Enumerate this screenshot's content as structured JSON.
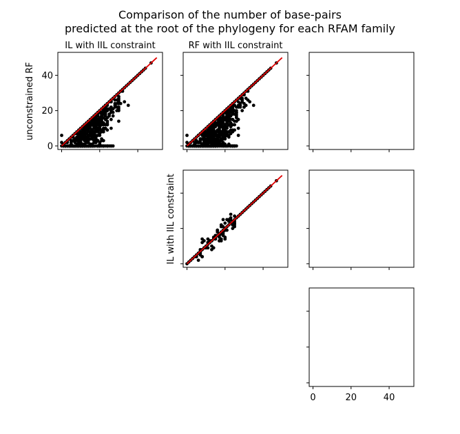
{
  "figure": {
    "title_line1": "Comparison of the number of base-pairs",
    "title_line2": "predicted at the root of the phylogeny for each RFAM family",
    "column_titles": [
      "IL with IIL constraint",
      "RF with IIL constraint"
    ],
    "row_labels": [
      "unconstrained RF",
      "IL with IIL constraint"
    ]
  },
  "chart_data": [
    {
      "type": "scatter",
      "panel": "row1-col1",
      "title": "IL with IIL constraint",
      "xlabel": "",
      "ylabel": "unconstrained RF",
      "xlim": [
        -2,
        53
      ],
      "ylim": [
        -2,
        53
      ],
      "yticks": [
        0,
        20,
        40
      ],
      "xticks": [
        0,
        20,
        40
      ],
      "reference_line": {
        "from": [
          0,
          0
        ],
        "to": [
          50,
          50
        ],
        "color": "#e00000"
      },
      "color": "#000000",
      "notes": "dense cloud of points on and below the diagonal, many points at y = 0"
    },
    {
      "type": "scatter",
      "panel": "row1-col2",
      "title": "RF with IIL constraint",
      "xlabel": "",
      "ylabel": "",
      "xlim": [
        -2,
        53
      ],
      "ylim": [
        -2,
        53
      ],
      "yticks": [
        0,
        20,
        40
      ],
      "xticks": [
        0,
        20,
        40
      ],
      "reference_line": {
        "from": [
          0,
          0
        ],
        "to": [
          50,
          50
        ],
        "color": "#e00000"
      },
      "color": "#000000"
    },
    {
      "type": "scatter",
      "panel": "row2-col2",
      "title": "",
      "xlabel": "",
      "ylabel": "IL with IIL constraint",
      "xlim": [
        -2,
        53
      ],
      "ylim": [
        -2,
        53
      ],
      "yticks": [
        0,
        20,
        40
      ],
      "xticks": [
        0,
        20,
        40
      ],
      "reference_line": {
        "from": [
          0,
          0
        ],
        "to": [
          50,
          50
        ],
        "color": "#e00000"
      },
      "color": "#000000"
    },
    {
      "type": "scatter",
      "panel": "row1-col3",
      "empty": true,
      "xlim": [
        -2,
        53
      ],
      "ylim": [
        -2,
        53
      ],
      "yticks": [
        0,
        20,
        40
      ],
      "xticks": [
        0,
        20,
        40
      ]
    },
    {
      "type": "scatter",
      "panel": "row2-col3",
      "empty": true,
      "xlim": [
        -2,
        53
      ],
      "ylim": [
        -2,
        53
      ],
      "yticks": [
        0,
        20,
        40
      ],
      "xticks": [
        0,
        20,
        40
      ]
    },
    {
      "type": "scatter",
      "panel": "row3-col3",
      "empty": true,
      "xlim": [
        -2,
        53
      ],
      "ylim": [
        -2,
        53
      ],
      "yticks": [
        0,
        20,
        40
      ],
      "xticks": [
        0,
        20,
        40
      ],
      "xtick_labels": [
        "0",
        "20",
        "40"
      ]
    }
  ]
}
